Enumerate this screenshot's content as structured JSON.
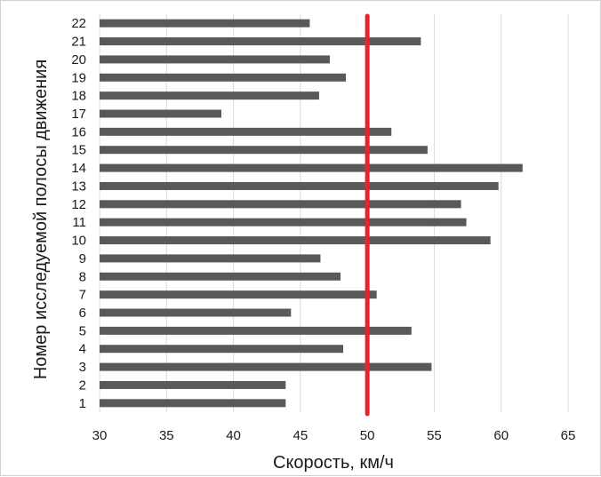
{
  "chart_data": {
    "type": "bar",
    "orientation": "horizontal",
    "categories": [
      "1",
      "2",
      "3",
      "4",
      "5",
      "6",
      "7",
      "8",
      "9",
      "10",
      "11",
      "12",
      "13",
      "14",
      "15",
      "16",
      "17",
      "18",
      "19",
      "20",
      "21",
      "22"
    ],
    "values": [
      43.9,
      43.9,
      54.8,
      48.2,
      53.3,
      44.3,
      50.7,
      48.0,
      46.5,
      59.2,
      57.4,
      57.0,
      59.8,
      61.6,
      54.5,
      51.8,
      39.1,
      46.4,
      48.4,
      47.2,
      54.0,
      45.7
    ],
    "xlabel": "Скорость, км/ч",
    "ylabel": "Номер исследуемой полосы движения",
    "xlim": [
      30,
      65
    ],
    "xticks": [
      "30",
      "35",
      "40",
      "45",
      "50",
      "55",
      "60",
      "65"
    ],
    "grid": "vertical",
    "bar_color": "#595959",
    "reference_line": {
      "value": 50,
      "color": "#e8232a"
    }
  }
}
